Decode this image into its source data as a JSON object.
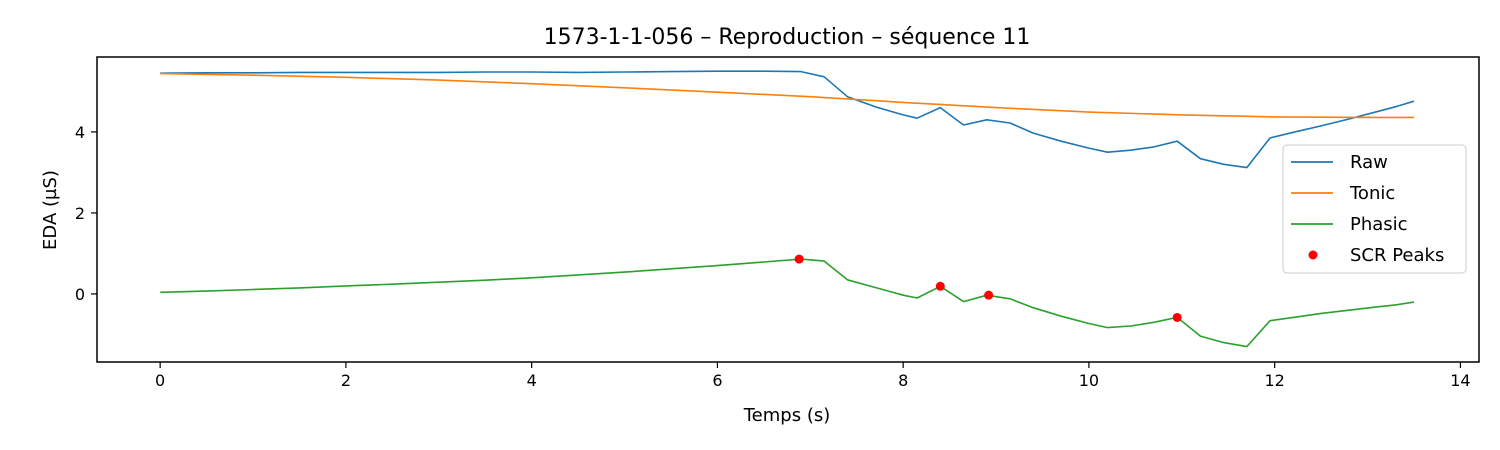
{
  "chart_data": {
    "type": "line",
    "title": "1573-1-1-056 – Reproduction – séquence 11",
    "xlabel": "Temps (s)",
    "ylabel": "EDA (µS)",
    "xlim": [
      -0.68,
      14.2
    ],
    "ylim": [
      -1.68,
      5.85
    ],
    "xticks": [
      0,
      2,
      4,
      6,
      8,
      10,
      12,
      14
    ],
    "yticks": [
      0,
      2,
      4
    ],
    "legend_position": "center-right",
    "series": [
      {
        "name": "Raw",
        "color": "#1f77b4",
        "x": [
          0,
          0.5,
          1.0,
          1.5,
          2.0,
          2.5,
          3.0,
          3.5,
          4.0,
          4.5,
          5.0,
          5.5,
          6.0,
          6.5,
          6.9,
          7.15,
          7.4,
          7.7,
          8.0,
          8.15,
          8.4,
          8.65,
          8.9,
          9.15,
          9.4,
          9.7,
          10.0,
          10.2,
          10.45,
          10.7,
          10.95,
          11.2,
          11.45,
          11.7,
          11.95,
          12.2,
          12.5,
          12.8,
          13.1,
          13.3,
          13.5
        ],
        "values": [
          5.45,
          5.46,
          5.46,
          5.47,
          5.47,
          5.47,
          5.47,
          5.48,
          5.48,
          5.47,
          5.48,
          5.49,
          5.5,
          5.5,
          5.49,
          5.36,
          4.87,
          4.62,
          4.42,
          4.34,
          4.6,
          4.17,
          4.3,
          4.22,
          3.97,
          3.77,
          3.6,
          3.5,
          3.55,
          3.63,
          3.77,
          3.34,
          3.2,
          3.12,
          3.85,
          3.99,
          4.15,
          4.32,
          4.5,
          4.62,
          4.76
        ]
      },
      {
        "name": "Tonic",
        "color": "#ff7f0e",
        "x": [
          0,
          1,
          2,
          3,
          4,
          5,
          6,
          7,
          8,
          9,
          10,
          11,
          12,
          13,
          13.5
        ],
        "values": [
          5.44,
          5.4,
          5.35,
          5.28,
          5.19,
          5.09,
          4.98,
          4.87,
          4.73,
          4.6,
          4.49,
          4.42,
          4.37,
          4.36,
          4.36
        ]
      },
      {
        "name": "Phasic",
        "color": "#2ca02c",
        "x": [
          0,
          0.5,
          1.0,
          1.5,
          2.0,
          2.5,
          3.0,
          3.5,
          4.0,
          4.5,
          5.0,
          5.5,
          6.0,
          6.5,
          6.9,
          7.15,
          7.4,
          7.7,
          8.0,
          8.15,
          8.4,
          8.65,
          8.9,
          9.15,
          9.4,
          9.7,
          10.0,
          10.2,
          10.45,
          10.7,
          10.95,
          11.2,
          11.45,
          11.7,
          11.95,
          12.2,
          12.5,
          12.8,
          13.1,
          13.3,
          13.5
        ],
        "values": [
          0.04,
          0.07,
          0.11,
          0.15,
          0.2,
          0.24,
          0.29,
          0.34,
          0.4,
          0.47,
          0.54,
          0.62,
          0.7,
          0.79,
          0.86,
          0.81,
          0.35,
          0.16,
          -0.03,
          -0.1,
          0.19,
          -0.19,
          -0.03,
          -0.12,
          -0.34,
          -0.55,
          -0.73,
          -0.83,
          -0.79,
          -0.7,
          -0.58,
          -1.04,
          -1.2,
          -1.3,
          -0.66,
          -0.58,
          -0.48,
          -0.4,
          -0.32,
          -0.27,
          -0.2
        ]
      },
      {
        "name": "SCR Peaks",
        "type": "scatter",
        "color": "#ff0000",
        "x": [
          6.88,
          8.4,
          8.92,
          10.95
        ],
        "values": [
          0.86,
          0.19,
          -0.03,
          -0.58
        ]
      }
    ]
  }
}
